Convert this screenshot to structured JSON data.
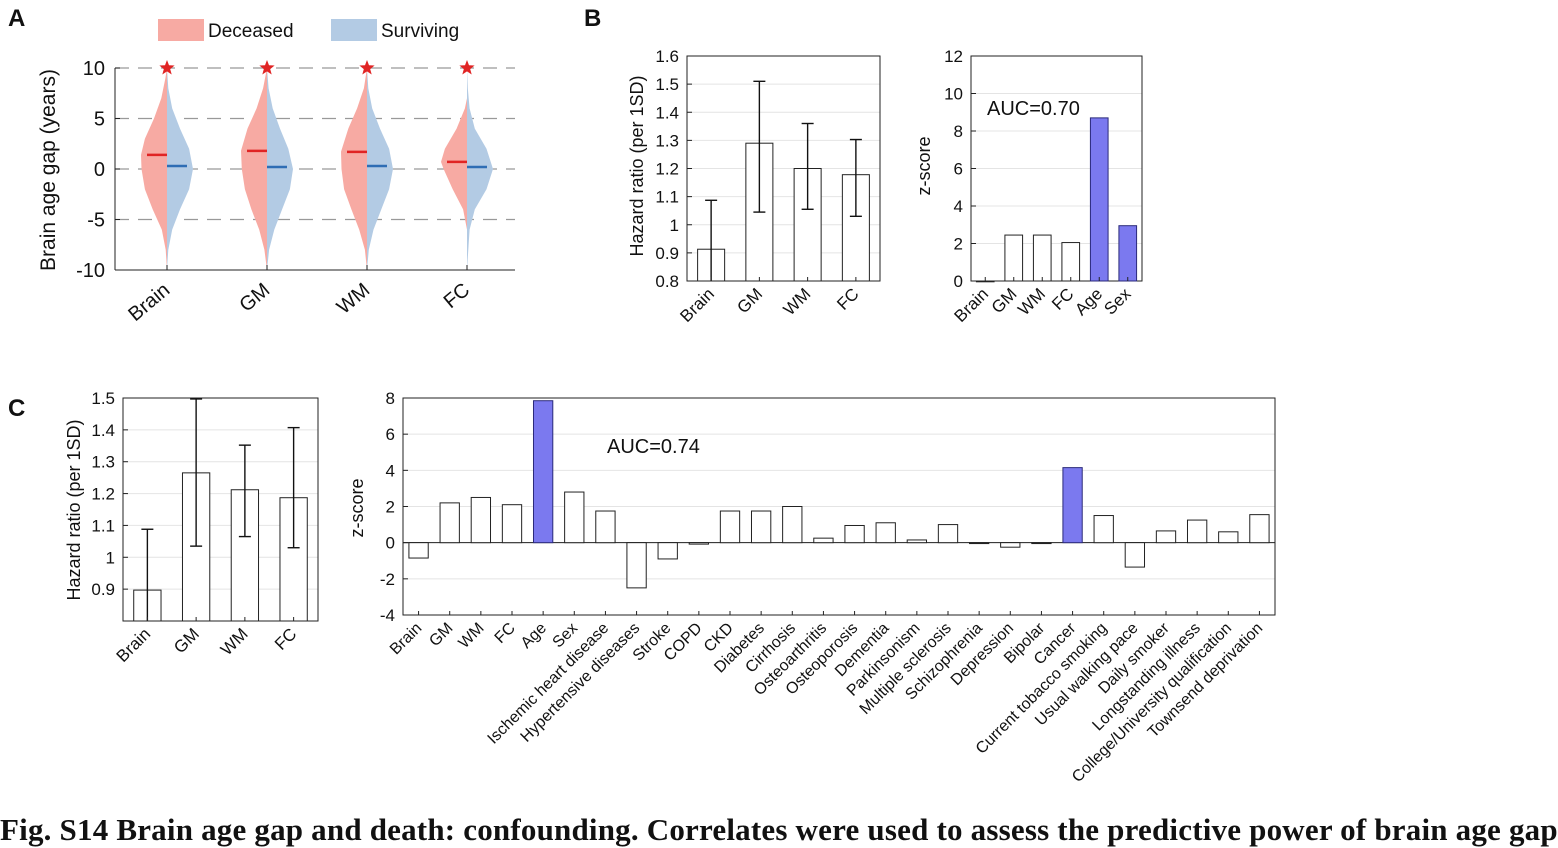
{
  "caption": "Fig. S14 Brain age gap and death: confounding. Correlates were used to assess the predictive power of brain age gap",
  "colors": {
    "deceased_fill": "#f7aaa3",
    "surviving_fill": "#b3cbe4",
    "deceased_line": "#e02424",
    "surviving_line": "#2e6db4",
    "highlight_bar": "#7b79ef",
    "plain_bar": "#ffffff",
    "star": "#e02424"
  },
  "chart_data": [
    {
      "panel": "A",
      "type": "violin",
      "legend": [
        "Deceased",
        "Surviving"
      ],
      "legend_position": "top",
      "ylabel": "Brain age gap (years)",
      "ylim": [
        -10,
        10
      ],
      "yticks": [
        -10,
        -5,
        0,
        5,
        10
      ],
      "grid": "dashed at 10, 5, 0, -5",
      "categories": [
        "Brain",
        "GM",
        "WM",
        "FC"
      ],
      "median_deceased": [
        1.4,
        1.8,
        1.7,
        0.7
      ],
      "median_surviving": [
        0.3,
        0.2,
        0.3,
        0.2
      ],
      "significance_marker": "star",
      "violin_half_width_deceased": [
        [
          [
            -10,
            0
          ],
          [
            -8,
            0.05
          ],
          [
            -6,
            0.2
          ],
          [
            -4,
            0.55
          ],
          [
            -2,
            0.85
          ],
          [
            0,
            0.98
          ],
          [
            1.4,
            1.0
          ],
          [
            3,
            0.85
          ],
          [
            5,
            0.5
          ],
          [
            7,
            0.22
          ],
          [
            9,
            0.06
          ],
          [
            10,
            0
          ]
        ],
        [
          [
            -10,
            0
          ],
          [
            -8,
            0.1
          ],
          [
            -6,
            0.3
          ],
          [
            -4,
            0.6
          ],
          [
            -2,
            0.85
          ],
          [
            0,
            0.97
          ],
          [
            1.8,
            1.0
          ],
          [
            4,
            0.75
          ],
          [
            6,
            0.4
          ],
          [
            8,
            0.15
          ],
          [
            10,
            0
          ]
        ],
        [
          [
            -10,
            0
          ],
          [
            -8,
            0.08
          ],
          [
            -6,
            0.3
          ],
          [
            -4,
            0.6
          ],
          [
            -2,
            0.88
          ],
          [
            0,
            0.98
          ],
          [
            1.7,
            1.0
          ],
          [
            4,
            0.72
          ],
          [
            6,
            0.38
          ],
          [
            8,
            0.12
          ],
          [
            10,
            0
          ]
        ],
        [
          [
            -6,
            0
          ],
          [
            -4,
            0.15
          ],
          [
            -2,
            0.55
          ],
          [
            0,
            0.9
          ],
          [
            0.7,
            1.0
          ],
          [
            2,
            0.85
          ],
          [
            4,
            0.4
          ],
          [
            6,
            0.08
          ],
          [
            7,
            0
          ]
        ]
      ],
      "violin_half_width_surviving": [
        [
          [
            -10,
            0
          ],
          [
            -8,
            0.05
          ],
          [
            -6,
            0.2
          ],
          [
            -4,
            0.5
          ],
          [
            -2,
            0.85
          ],
          [
            0,
            1.0
          ],
          [
            2,
            0.85
          ],
          [
            4,
            0.5
          ],
          [
            6,
            0.2
          ],
          [
            8,
            0.05
          ],
          [
            10,
            0
          ]
        ],
        [
          [
            -10,
            0
          ],
          [
            -8,
            0.08
          ],
          [
            -6,
            0.28
          ],
          [
            -4,
            0.58
          ],
          [
            -2,
            0.88
          ],
          [
            0,
            1.0
          ],
          [
            2,
            0.82
          ],
          [
            4,
            0.5
          ],
          [
            6,
            0.22
          ],
          [
            8,
            0.06
          ],
          [
            10,
            0
          ]
        ],
        [
          [
            -10,
            0
          ],
          [
            -8,
            0.07
          ],
          [
            -6,
            0.25
          ],
          [
            -4,
            0.55
          ],
          [
            -2,
            0.85
          ],
          [
            0,
            1.0
          ],
          [
            2,
            0.85
          ],
          [
            4,
            0.5
          ],
          [
            6,
            0.2
          ],
          [
            8,
            0.05
          ],
          [
            10,
            0
          ]
        ],
        [
          [
            -10,
            0
          ],
          [
            -8,
            0.05
          ],
          [
            -6,
            0.1
          ],
          [
            -4,
            0.3
          ],
          [
            -2,
            0.75
          ],
          [
            0,
            1.0
          ],
          [
            2,
            0.75
          ],
          [
            4,
            0.3
          ],
          [
            6,
            0.1
          ],
          [
            8,
            0.03
          ],
          [
            10,
            0
          ]
        ]
      ]
    },
    {
      "panel": "B",
      "type": "bar",
      "ylabel": "Hazard ratio (per 1SD)",
      "ylim": [
        0.8,
        1.6
      ],
      "yticks": [
        0.8,
        0.9,
        1.0,
        1.1,
        1.2,
        1.3,
        1.4,
        1.5,
        1.6
      ],
      "categories": [
        "Brain",
        "GM",
        "WM",
        "FC"
      ],
      "values": [
        0.913,
        1.29,
        1.2,
        1.178
      ],
      "ci_low": [
        0.8,
        1.045,
        1.055,
        1.03
      ],
      "ci_high": [
        1.087,
        1.51,
        1.36,
        1.303
      ],
      "grid": true
    },
    {
      "panel": "B",
      "type": "bar",
      "ylabel": "z-score",
      "ylim": [
        0,
        12
      ],
      "yticks": [
        0,
        2,
        4,
        6,
        8,
        10,
        12
      ],
      "annotation": "AUC=0.70",
      "categories": [
        "Brain",
        "GM",
        "WM",
        "FC",
        "Age",
        "Sex"
      ],
      "values": [
        0.0,
        2.45,
        2.45,
        2.05,
        8.7,
        2.95
      ],
      "highlighted": [
        "Age",
        "Sex"
      ],
      "grid": true
    },
    {
      "panel": "C",
      "type": "bar",
      "ylabel": "Hazard ratio (per 1SD)",
      "ylim": [
        0.8,
        1.5
      ],
      "yticks": [
        0.9,
        1.0,
        1.1,
        1.2,
        1.3,
        1.4,
        1.5
      ],
      "categories": [
        "Brain",
        "GM",
        "WM",
        "FC"
      ],
      "values": [
        0.897,
        1.265,
        1.212,
        1.187
      ],
      "ci_low": [
        0.8,
        1.035,
        1.065,
        1.03
      ],
      "ci_high": [
        1.088,
        1.497,
        1.352,
        1.407
      ],
      "grid": true
    },
    {
      "panel": "C",
      "type": "bar",
      "ylabel": "z-score",
      "ylim": [
        -4,
        8
      ],
      "yticks": [
        -4,
        -2,
        0,
        2,
        4,
        6,
        8
      ],
      "annotation": "AUC=0.74",
      "categories": [
        "Brain",
        "GM",
        "WM",
        "FC",
        "Age",
        "Sex",
        "Ischemic heart disease",
        "Hypertensive diseases",
        "Stroke",
        "COPD",
        "CKD",
        "Diabetes",
        "Cirrhosis",
        "Osteoarthritis",
        "Osteoporosis",
        "Dementia",
        "Parkinsonism",
        "Multiple sclerosis",
        "Schizophrenia",
        "Depression",
        "Bipolar",
        "Cancer",
        "Current tobacco smoking",
        "Usual walking pace",
        "Daily smoker",
        "Longstanding illness",
        "College/University qualification",
        "Townsend deprivation"
      ],
      "values": [
        -0.85,
        2.2,
        2.5,
        2.1,
        7.85,
        2.8,
        1.75,
        -2.5,
        -0.9,
        -0.08,
        1.75,
        1.75,
        2.0,
        0.25,
        0.95,
        1.1,
        0.15,
        1.0,
        -0.05,
        -0.25,
        -0.05,
        4.15,
        1.5,
        -1.35,
        0.65,
        1.25,
        0.6,
        1.55
      ],
      "highlighted": [
        "Age",
        "Cancer"
      ],
      "grid": true
    }
  ]
}
